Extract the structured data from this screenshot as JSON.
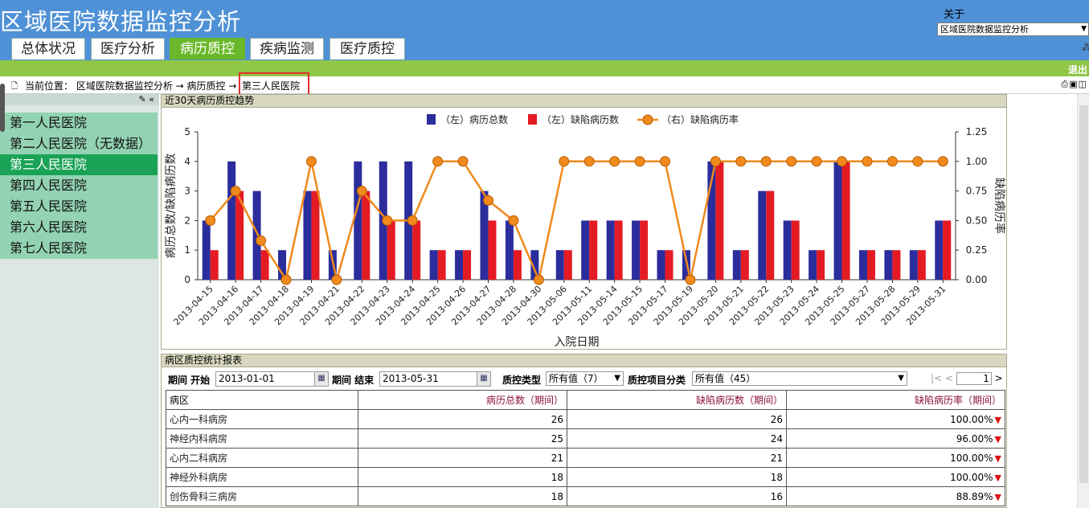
{
  "app": {
    "title": "区域医院数据监控分析"
  },
  "header": {
    "about": "关于",
    "select_value": "区域医院数据监控分析",
    "logout": "退出"
  },
  "tabs": [
    {
      "label": "总体状况"
    },
    {
      "label": "医疗分析"
    },
    {
      "label": "病历质控",
      "active": true
    },
    {
      "label": "疾病监测"
    },
    {
      "label": "医疗质控"
    }
  ],
  "breadcrumb": {
    "text": "当前位置： 区域医院数据监控分析 → 病历质控 →",
    "current": "第三人民医院"
  },
  "sidebar": {
    "items": [
      {
        "label": "第一人民医院"
      },
      {
        "label": "第二人民医院（无数据）"
      },
      {
        "label": "第三人民医院",
        "active": true
      },
      {
        "label": "第四人民医院"
      },
      {
        "label": "第五人民医院"
      },
      {
        "label": "第六人民医院"
      },
      {
        "label": "第七人民医院"
      }
    ]
  },
  "chart_panel": {
    "title": "近30天病历质控趋势"
  },
  "chart_data": {
    "type": "bar",
    "title": "",
    "xlabel": "入院日期",
    "ylabel": "病历总数/缺陷病历数",
    "y2label": "缺陷病历率",
    "ylim": [
      0,
      5
    ],
    "y2lim": [
      0,
      1.25
    ],
    "yticks": [
      "0",
      "1",
      "2",
      "3",
      "4",
      "5"
    ],
    "y2ticks": [
      "0.00",
      "0.25",
      "0.50",
      "0.75",
      "1.00",
      "1.25"
    ],
    "categories": [
      "2013-04-15",
      "2013-04-16",
      "2013-04-17",
      "2013-04-18",
      "2013-04-19",
      "2013-04-21",
      "2013-04-22",
      "2013-04-23",
      "2013-04-24",
      "2013-04-25",
      "2013-04-26",
      "2013-04-27",
      "2013-04-28",
      "2013-04-30",
      "2013-05-06",
      "2013-05-11",
      "2013-05-14",
      "2013-05-15",
      "2013-05-17",
      "2013-05-19",
      "2013-05-20",
      "2013-05-21",
      "2013-05-22",
      "2013-05-23",
      "2013-05-24",
      "2013-05-25",
      "2013-05-27",
      "2013-05-28",
      "2013-05-29",
      "2013-05-31"
    ],
    "series": [
      {
        "name": "（左）病历总数",
        "type": "bar",
        "color": "#2b2d9c",
        "values": [
          2,
          4,
          3,
          1,
          3,
          1,
          4,
          4,
          4,
          1,
          1,
          3,
          2,
          1,
          1,
          2,
          2,
          2,
          1,
          1,
          4,
          1,
          3,
          2,
          1,
          4,
          1,
          1,
          1,
          2
        ]
      },
      {
        "name": "（左）缺陷病历数",
        "type": "bar",
        "color": "#e41b23",
        "values": [
          1,
          3,
          1,
          0,
          3,
          0,
          3,
          2,
          2,
          1,
          1,
          2,
          1,
          0,
          1,
          2,
          2,
          2,
          1,
          0,
          4,
          1,
          3,
          2,
          1,
          4,
          1,
          1,
          1,
          2
        ]
      },
      {
        "name": "（右）缺陷病历率",
        "type": "line",
        "axis": "right",
        "color": "#f08a1c",
        "values": [
          0.5,
          0.75,
          0.33,
          0,
          1,
          0,
          0.75,
          0.5,
          0.5,
          1,
          1,
          0.67,
          0.5,
          0,
          1,
          1,
          1,
          1,
          1,
          0,
          1,
          1,
          1,
          1,
          1,
          1,
          1,
          1,
          1,
          1
        ]
      }
    ],
    "legend": "top-center",
    "grid": false
  },
  "table_panel": {
    "title": "病区质控统计报表",
    "filters": {
      "start_label": "期间 开始",
      "start_value": "2013-01-01",
      "end_label": "期间 结束",
      "end_value": "2013-05-31",
      "type_label": "质控类型",
      "type_value": "所有值（7）",
      "category_label": "质控项目分类",
      "category_value": "所有值（45）"
    },
    "pager": {
      "first": "|<",
      "prev": "<",
      "page": "1",
      "next": ">",
      "last": ">|"
    },
    "columns": [
      "病区",
      "病历总数（期间）",
      "缺陷病历数（期间）",
      "缺陷病历率（期间）"
    ],
    "rows": [
      [
        "心内一科病房",
        "26",
        "26",
        "100.00%"
      ],
      [
        "神经内科病房",
        "25",
        "24",
        "96.00%"
      ],
      [
        "心内二科病房",
        "21",
        "21",
        "100.00%"
      ],
      [
        "神经外科病房",
        "18",
        "18",
        "100.00%"
      ],
      [
        "创伤骨科三病房",
        "18",
        "16",
        "88.89%"
      ]
    ]
  }
}
